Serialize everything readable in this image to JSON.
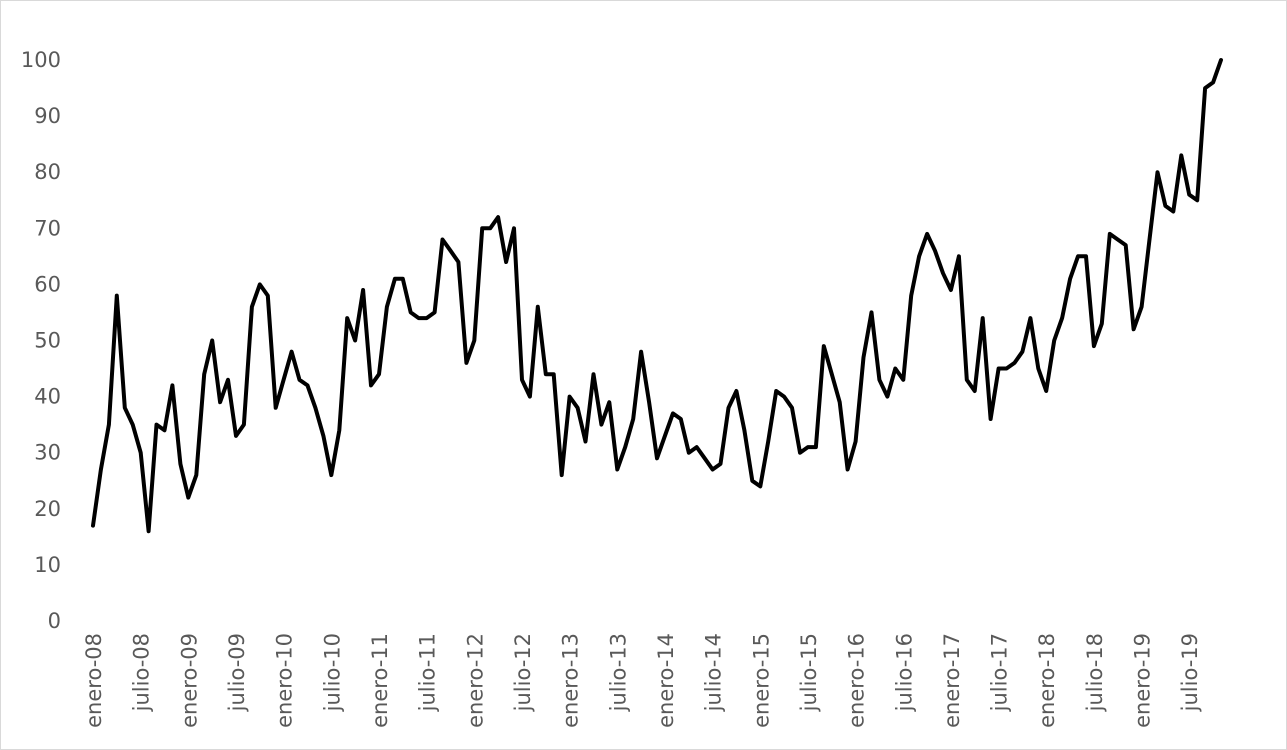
{
  "chart_data": {
    "type": "line",
    "title": "",
    "xlabel": "",
    "ylabel": "",
    "ylim": [
      0,
      100
    ],
    "yticks": [
      0,
      10,
      20,
      30,
      40,
      50,
      60,
      70,
      80,
      90,
      100
    ],
    "grid": false,
    "legend": "none",
    "line_color": "#000000",
    "x_tick_labels": [
      "enero-08",
      "julio-08",
      "enero-09",
      "julio-09",
      "enero-10",
      "julio-10",
      "enero-11",
      "julio-11",
      "enero-12",
      "julio-12",
      "enero-13",
      "julio-13",
      "enero-14",
      "julio-14",
      "enero-15",
      "julio-15",
      "enero-16",
      "julio-16",
      "enero-17",
      "julio-17",
      "enero-18",
      "julio-18",
      "enero-19",
      "julio-19"
    ],
    "x_start": "enero-08",
    "series": [
      {
        "values": [
          17,
          27,
          35,
          58,
          38,
          35,
          30,
          16,
          35,
          34,
          42,
          28,
          22,
          26,
          44,
          50,
          39,
          43,
          33,
          35,
          56,
          60,
          58,
          38,
          43,
          48,
          43,
          42,
          38,
          33,
          26,
          34,
          54,
          50,
          59,
          42,
          44,
          56,
          61,
          61,
          55,
          54,
          54,
          55,
          68,
          66,
          64,
          46,
          50,
          70,
          70,
          72,
          64,
          70,
          43,
          40,
          56,
          44,
          44,
          26,
          40,
          38,
          32,
          44,
          35,
          39,
          27,
          31,
          36,
          48,
          39,
          29,
          33,
          37,
          36,
          30,
          31,
          29,
          27,
          28,
          38,
          41,
          34,
          25,
          24,
          32,
          41,
          40,
          38,
          30,
          31,
          31,
          49,
          44,
          39,
          27,
          32,
          47,
          55,
          43,
          40,
          45,
          43,
          58,
          65,
          69,
          66,
          62,
          59,
          65,
          43,
          41,
          54,
          36,
          45,
          45,
          46,
          48,
          54,
          45,
          41,
          50,
          54,
          61,
          65,
          65,
          49,
          53,
          69,
          68,
          67,
          52,
          56,
          68,
          80,
          74,
          73,
          83,
          76,
          75,
          95,
          96,
          100
        ]
      }
    ]
  }
}
